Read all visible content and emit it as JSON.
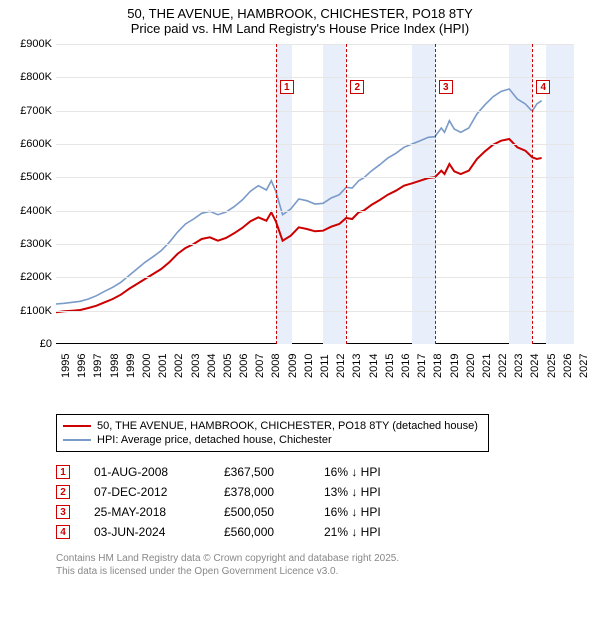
{
  "title": {
    "line1": "50, THE AVENUE, HAMBROOK, CHICHESTER, PO18 8TY",
    "line2": "Price paid vs. HM Land Registry's House Price Index (HPI)"
  },
  "chart": {
    "type": "line",
    "background_color": "#ffffff",
    "grid_color": "#e6e6e6",
    "x_range": [
      1995,
      2027
    ],
    "y_range": [
      0,
      900
    ],
    "y_ticks": [
      0,
      100,
      200,
      300,
      400,
      500,
      600,
      700,
      800,
      900
    ],
    "y_tick_labels": [
      "£0",
      "£100K",
      "£200K",
      "£300K",
      "£400K",
      "£500K",
      "£600K",
      "£700K",
      "£800K",
      "£900K"
    ],
    "x_ticks": [
      1995,
      1996,
      1997,
      1998,
      1999,
      2000,
      2001,
      2002,
      2003,
      2004,
      2005,
      2006,
      2007,
      2008,
      2009,
      2010,
      2011,
      2012,
      2013,
      2014,
      2015,
      2016,
      2017,
      2018,
      2019,
      2020,
      2021,
      2022,
      2023,
      2024,
      2025,
      2026,
      2027
    ],
    "bands": [
      {
        "from": 2008.58,
        "to": 2009.58,
        "color": "#e8effa"
      },
      {
        "from": 2011.5,
        "to": 2012.93,
        "color": "#e8effa"
      },
      {
        "from": 2017.0,
        "to": 2018.4,
        "color": "#e8effa"
      },
      {
        "from": 2023.0,
        "to": 2024.42,
        "color": "#e8effa"
      },
      {
        "from": 2025.3,
        "to": 2027.0,
        "color": "#e8effa"
      }
    ],
    "vlines": [
      {
        "x": 2008.58,
        "label": "1"
      },
      {
        "x": 2012.93,
        "label": "2"
      },
      {
        "x": 2018.4,
        "label": "3"
      },
      {
        "x": 2024.42,
        "label": "4"
      }
    ],
    "vline_color": "#cc0000",
    "series": [
      {
        "name": "price_paid",
        "color": "#cc0000",
        "width": 2,
        "points": [
          [
            1995,
            95
          ],
          [
            1995.5,
            98
          ],
          [
            1996,
            100
          ],
          [
            1996.5,
            102
          ],
          [
            1997,
            108
          ],
          [
            1997.5,
            115
          ],
          [
            1998,
            125
          ],
          [
            1998.5,
            135
          ],
          [
            1999,
            148
          ],
          [
            1999.5,
            165
          ],
          [
            2000,
            180
          ],
          [
            2000.5,
            195
          ],
          [
            2001,
            210
          ],
          [
            2001.5,
            225
          ],
          [
            2002,
            245
          ],
          [
            2002.5,
            270
          ],
          [
            2003,
            288
          ],
          [
            2003.5,
            300
          ],
          [
            2004,
            315
          ],
          [
            2004.5,
            320
          ],
          [
            2005,
            310
          ],
          [
            2005.5,
            318
          ],
          [
            2006,
            332
          ],
          [
            2006.5,
            348
          ],
          [
            2007,
            368
          ],
          [
            2007.5,
            380
          ],
          [
            2008,
            370
          ],
          [
            2008.3,
            395
          ],
          [
            2008.58,
            368
          ],
          [
            2009,
            310
          ],
          [
            2009.5,
            325
          ],
          [
            2010,
            350
          ],
          [
            2010.5,
            345
          ],
          [
            2011,
            338
          ],
          [
            2011.5,
            340
          ],
          [
            2012,
            352
          ],
          [
            2012.5,
            360
          ],
          [
            2012.93,
            378
          ],
          [
            2013.3,
            375
          ],
          [
            2013.7,
            395
          ],
          [
            2014,
            400
          ],
          [
            2014.5,
            418
          ],
          [
            2015,
            432
          ],
          [
            2015.5,
            448
          ],
          [
            2016,
            460
          ],
          [
            2016.5,
            475
          ],
          [
            2017,
            482
          ],
          [
            2017.5,
            490
          ],
          [
            2018,
            498
          ],
          [
            2018.4,
            500
          ],
          [
            2018.8,
            520
          ],
          [
            2019,
            510
          ],
          [
            2019.3,
            540
          ],
          [
            2019.6,
            518
          ],
          [
            2020,
            510
          ],
          [
            2020.5,
            520
          ],
          [
            2021,
            555
          ],
          [
            2021.5,
            578
          ],
          [
            2022,
            598
          ],
          [
            2022.5,
            610
          ],
          [
            2023,
            615
          ],
          [
            2023.5,
            590
          ],
          [
            2024,
            580
          ],
          [
            2024.42,
            560
          ],
          [
            2024.7,
            555
          ],
          [
            2025,
            558
          ]
        ]
      },
      {
        "name": "hpi",
        "color": "#7a9ac9",
        "width": 1.6,
        "points": [
          [
            1995,
            120
          ],
          [
            1995.5,
            122
          ],
          [
            1996,
            125
          ],
          [
            1996.5,
            128
          ],
          [
            1997,
            135
          ],
          [
            1997.5,
            145
          ],
          [
            1998,
            158
          ],
          [
            1998.5,
            170
          ],
          [
            1999,
            185
          ],
          [
            1999.5,
            205
          ],
          [
            2000,
            225
          ],
          [
            2000.5,
            245
          ],
          [
            2001,
            262
          ],
          [
            2001.5,
            280
          ],
          [
            2002,
            305
          ],
          [
            2002.5,
            335
          ],
          [
            2003,
            360
          ],
          [
            2003.5,
            375
          ],
          [
            2004,
            392
          ],
          [
            2004.5,
            398
          ],
          [
            2005,
            388
          ],
          [
            2005.5,
            396
          ],
          [
            2006,
            412
          ],
          [
            2006.5,
            432
          ],
          [
            2007,
            458
          ],
          [
            2007.5,
            475
          ],
          [
            2008,
            462
          ],
          [
            2008.3,
            490
          ],
          [
            2008.58,
            458
          ],
          [
            2009,
            388
          ],
          [
            2009.5,
            405
          ],
          [
            2010,
            435
          ],
          [
            2010.5,
            430
          ],
          [
            2011,
            420
          ],
          [
            2011.5,
            422
          ],
          [
            2012,
            438
          ],
          [
            2012.5,
            448
          ],
          [
            2012.93,
            470
          ],
          [
            2013.3,
            468
          ],
          [
            2013.7,
            490
          ],
          [
            2014,
            498
          ],
          [
            2014.5,
            520
          ],
          [
            2015,
            538
          ],
          [
            2015.5,
            558
          ],
          [
            2016,
            572
          ],
          [
            2016.5,
            590
          ],
          [
            2017,
            600
          ],
          [
            2017.5,
            610
          ],
          [
            2018,
            620
          ],
          [
            2018.4,
            622
          ],
          [
            2018.8,
            648
          ],
          [
            2019,
            635
          ],
          [
            2019.3,
            670
          ],
          [
            2019.6,
            645
          ],
          [
            2020,
            635
          ],
          [
            2020.5,
            648
          ],
          [
            2021,
            690
          ],
          [
            2021.5,
            718
          ],
          [
            2022,
            742
          ],
          [
            2022.5,
            758
          ],
          [
            2023,
            765
          ],
          [
            2023.5,
            735
          ],
          [
            2024,
            720
          ],
          [
            2024.42,
            698
          ],
          [
            2024.7,
            720
          ],
          [
            2025,
            730
          ]
        ]
      }
    ]
  },
  "legend": {
    "items": [
      {
        "label": "50, THE AVENUE, HAMBROOK, CHICHESTER, PO18 8TY (detached house)",
        "color": "#cc0000",
        "width": 2
      },
      {
        "label": "HPI: Average price, detached house, Chichester",
        "color": "#7a9ac9",
        "width": 2
      }
    ]
  },
  "transactions": [
    {
      "n": "1",
      "date": "01-AUG-2008",
      "price": "£367,500",
      "pct": "16% ↓ HPI"
    },
    {
      "n": "2",
      "date": "07-DEC-2012",
      "price": "£378,000",
      "pct": "13% ↓ HPI"
    },
    {
      "n": "3",
      "date": "25-MAY-2018",
      "price": "£500,050",
      "pct": "16% ↓ HPI"
    },
    {
      "n": "4",
      "date": "03-JUN-2024",
      "price": "£560,000",
      "pct": "21% ↓ HPI"
    }
  ],
  "footer": {
    "line1": "Contains HM Land Registry data © Crown copyright and database right 2025.",
    "line2": "This data is licensed under the Open Government Licence v3.0."
  }
}
